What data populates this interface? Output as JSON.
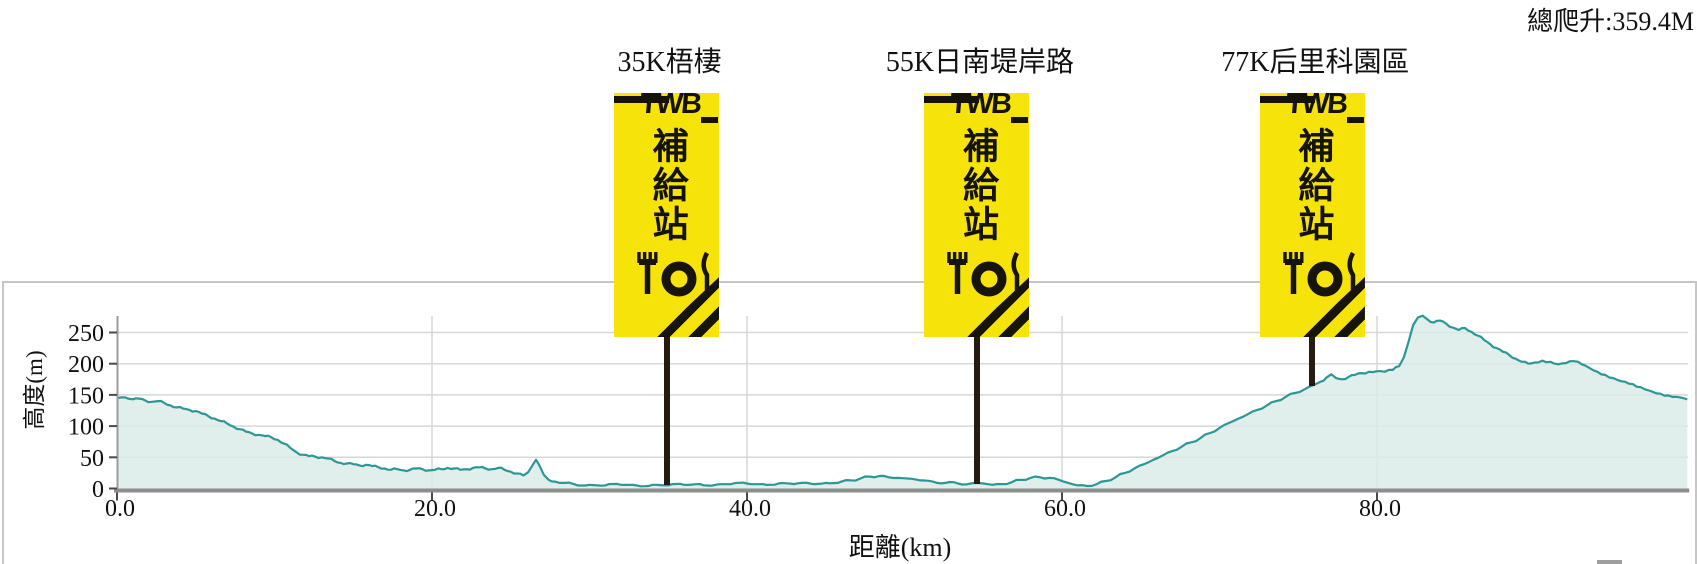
{
  "header": {
    "total_climb_label": "總爬升:359.4M"
  },
  "stations": [
    {
      "label": "35K梧棲"
    },
    {
      "label": "55K日南堤岸路"
    },
    {
      "label": "77K后里科園區"
    }
  ],
  "supply_banner": {
    "logo_text": "TWB",
    "banner_text": "補給站"
  },
  "chart_data": {
    "type": "area",
    "title": "",
    "xlabel": "距離(km)",
    "ylabel": "高度(m)",
    "xlim": [
      0,
      99.7
    ],
    "ylim": [
      0,
      250
    ],
    "grid": true,
    "legend": "none",
    "total_climb_m": 359.4,
    "line_color": "#2d9795",
    "fill_color": "#d9eae8",
    "x_tick_values": [
      0,
      20,
      40,
      60,
      80
    ],
    "x_tick_labels": [
      "0.0",
      "20.0",
      "40.0",
      "60.0",
      "80.0"
    ],
    "y_tick_values": [
      250,
      200,
      150,
      100,
      50,
      0
    ],
    "y_tick_labels": [
      "250",
      "200",
      "150",
      "100",
      "50",
      "0"
    ],
    "station_markers_km": [
      35,
      55,
      77
    ],
    "profile": [
      [
        0,
        145
      ],
      [
        0.3,
        146
      ],
      [
        0.7,
        144
      ],
      [
        1,
        143
      ],
      [
        1.4,
        144
      ],
      [
        1.8,
        141
      ],
      [
        2.2,
        139
      ],
      [
        2.6,
        140
      ],
      [
        3,
        137
      ],
      [
        3.4,
        133
      ],
      [
        3.8,
        130
      ],
      [
        4.2,
        128
      ],
      [
        4.6,
        126
      ],
      [
        5,
        124
      ],
      [
        5.4,
        120
      ],
      [
        5.8,
        116
      ],
      [
        6.2,
        112
      ],
      [
        6.6,
        108
      ],
      [
        7,
        104
      ],
      [
        7.4,
        99
      ],
      [
        7.8,
        95
      ],
      [
        8.2,
        91
      ],
      [
        8.6,
        88
      ],
      [
        9,
        86
      ],
      [
        9.4,
        84
      ],
      [
        9.8,
        82
      ],
      [
        10.2,
        78
      ],
      [
        10.6,
        72
      ],
      [
        11,
        65
      ],
      [
        11.4,
        58
      ],
      [
        11.8,
        54
      ],
      [
        12.2,
        52
      ],
      [
        12.6,
        51
      ],
      [
        13,
        50
      ],
      [
        13.4,
        48
      ],
      [
        13.8,
        44
      ],
      [
        14.2,
        41
      ],
      [
        14.6,
        40
      ],
      [
        15,
        39
      ],
      [
        15.4,
        37
      ],
      [
        15.8,
        38
      ],
      [
        16.2,
        36
      ],
      [
        16.6,
        34
      ],
      [
        17,
        32
      ],
      [
        17.4,
        30
      ],
      [
        17.8,
        31
      ],
      [
        18.2,
        29
      ],
      [
        18.6,
        30
      ],
      [
        19,
        32
      ],
      [
        19.4,
        31
      ],
      [
        19.8,
        29
      ],
      [
        20.2,
        30
      ],
      [
        20.6,
        31
      ],
      [
        21,
        33
      ],
      [
        21.4,
        32
      ],
      [
        21.8,
        30
      ],
      [
        22.2,
        31
      ],
      [
        22.6,
        33
      ],
      [
        23,
        34
      ],
      [
        23.4,
        32
      ],
      [
        23.8,
        31
      ],
      [
        24.2,
        33
      ],
      [
        24.6,
        30
      ],
      [
        25,
        27
      ],
      [
        25.4,
        24
      ],
      [
        25.8,
        21
      ],
      [
        26.1,
        26
      ],
      [
        26.4,
        38
      ],
      [
        26.6,
        46
      ],
      [
        26.8,
        38
      ],
      [
        27.1,
        22
      ],
      [
        27.4,
        14
      ],
      [
        27.8,
        11
      ],
      [
        28.4,
        9
      ],
      [
        29,
        7
      ],
      [
        30,
        6
      ],
      [
        31,
        5
      ],
      [
        32,
        6
      ],
      [
        33,
        5
      ],
      [
        34,
        6
      ],
      [
        35,
        5
      ],
      [
        36,
        6
      ],
      [
        37,
        7
      ],
      [
        38,
        6
      ],
      [
        39,
        7
      ],
      [
        40,
        8
      ],
      [
        41,
        7
      ],
      [
        42,
        8
      ],
      [
        43,
        7
      ],
      [
        44,
        8
      ],
      [
        45,
        9
      ],
      [
        46,
        11
      ],
      [
        46.6,
        13
      ],
      [
        47.2,
        16
      ],
      [
        47.8,
        19
      ],
      [
        48.4,
        20
      ],
      [
        49,
        18
      ],
      [
        49.6,
        17
      ],
      [
        50.2,
        16
      ],
      [
        51,
        13
      ],
      [
        51.8,
        11
      ],
      [
        52.6,
        9
      ],
      [
        53.4,
        8
      ],
      [
        54.2,
        8
      ],
      [
        55,
        8
      ],
      [
        55.6,
        6
      ],
      [
        56.2,
        7
      ],
      [
        56.8,
        10
      ],
      [
        57.4,
        14
      ],
      [
        58,
        17
      ],
      [
        58.6,
        18
      ],
      [
        59.2,
        17
      ],
      [
        59.8,
        14
      ],
      [
        60.4,
        9
      ],
      [
        61,
        5
      ],
      [
        61.6,
        4
      ],
      [
        62.2,
        7
      ],
      [
        62.8,
        12
      ],
      [
        63.4,
        18
      ],
      [
        64,
        25
      ],
      [
        64.6,
        32
      ],
      [
        65.2,
        39
      ],
      [
        65.8,
        46
      ],
      [
        66.4,
        53
      ],
      [
        67,
        60
      ],
      [
        67.6,
        67
      ],
      [
        68.2,
        74
      ],
      [
        68.8,
        81
      ],
      [
        69.4,
        89
      ],
      [
        70,
        97
      ],
      [
        70.6,
        105
      ],
      [
        71.2,
        112
      ],
      [
        71.8,
        119
      ],
      [
        72.4,
        126
      ],
      [
        73,
        133
      ],
      [
        73.6,
        140
      ],
      [
        74.2,
        147
      ],
      [
        74.8,
        153
      ],
      [
        75.4,
        159
      ],
      [
        76,
        166
      ],
      [
        76.4,
        171
      ],
      [
        76.8,
        178
      ],
      [
        77.1,
        183
      ],
      [
        77.4,
        177
      ],
      [
        77.8,
        175
      ],
      [
        78.2,
        179
      ],
      [
        78.6,
        182
      ],
      [
        79,
        185
      ],
      [
        79.5,
        187
      ],
      [
        80,
        188
      ],
      [
        80.5,
        187
      ],
      [
        81,
        190
      ],
      [
        81.4,
        196
      ],
      [
        81.7,
        210
      ],
      [
        82,
        235
      ],
      [
        82.3,
        262
      ],
      [
        82.6,
        274
      ],
      [
        82.9,
        277
      ],
      [
        83.2,
        271
      ],
      [
        83.6,
        266
      ],
      [
        84,
        269
      ],
      [
        84.4,
        264
      ],
      [
        84.8,
        258
      ],
      [
        85.2,
        254
      ],
      [
        85.6,
        257
      ],
      [
        86,
        251
      ],
      [
        86.4,
        245
      ],
      [
        86.8,
        238
      ],
      [
        87.2,
        231
      ],
      [
        87.6,
        225
      ],
      [
        88,
        219
      ],
      [
        88.4,
        214
      ],
      [
        88.8,
        208
      ],
      [
        89.2,
        203
      ],
      [
        89.6,
        200
      ],
      [
        90,
        202
      ],
      [
        90.5,
        205
      ],
      [
        91,
        203
      ],
      [
        91.5,
        199
      ],
      [
        92,
        201
      ],
      [
        92.5,
        204
      ],
      [
        93,
        199
      ],
      [
        93.5,
        193
      ],
      [
        94,
        187
      ],
      [
        94.5,
        182
      ],
      [
        95,
        177
      ],
      [
        95.5,
        172
      ],
      [
        96,
        168
      ],
      [
        96.5,
        163
      ],
      [
        97,
        159
      ],
      [
        97.5,
        155
      ],
      [
        98,
        152
      ],
      [
        98.5,
        149
      ],
      [
        99,
        147
      ],
      [
        99.4,
        145
      ],
      [
        99.7,
        143
      ]
    ]
  }
}
